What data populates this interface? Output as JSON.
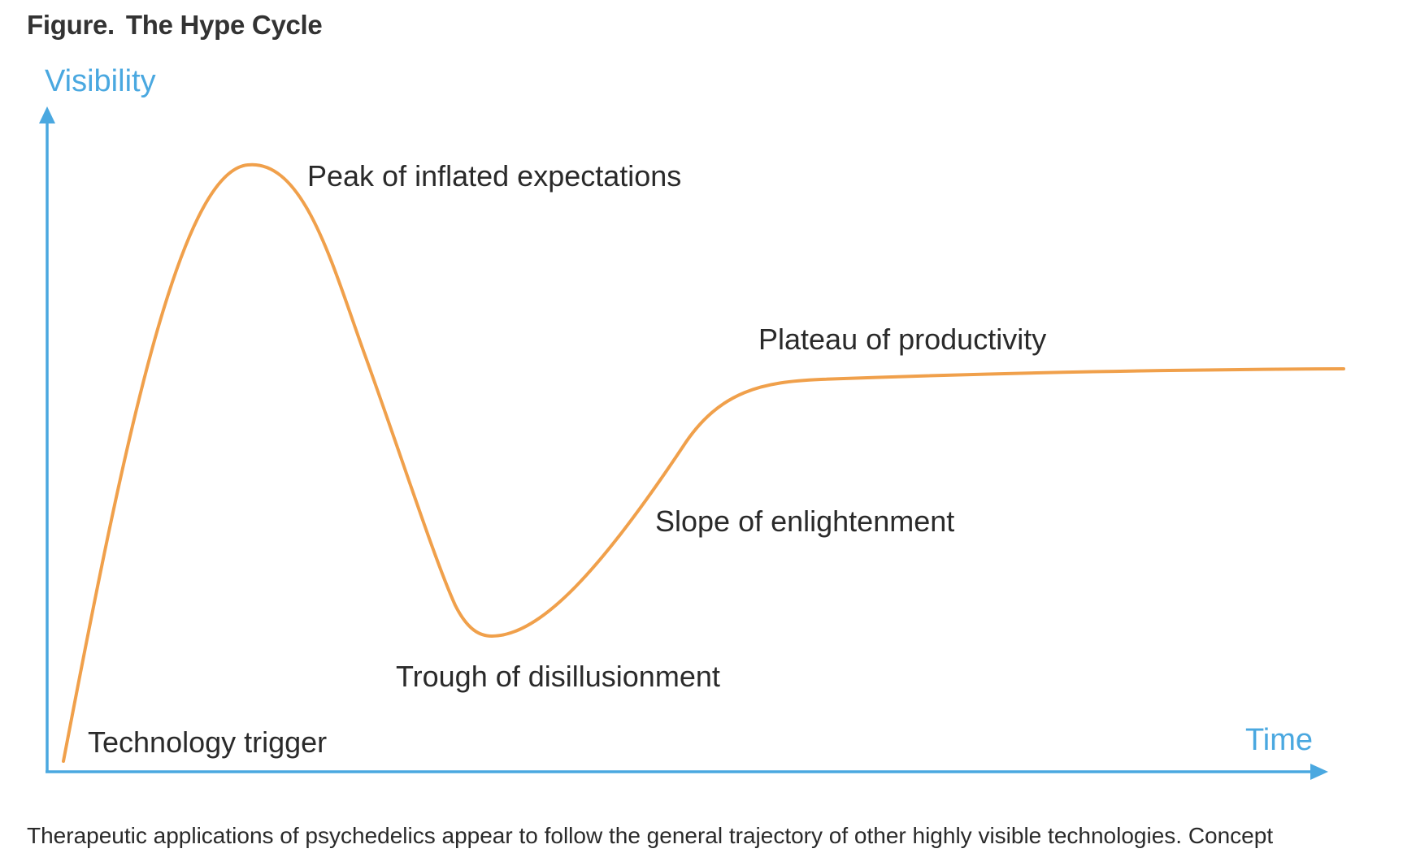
{
  "figure": {
    "label": "Figure.",
    "title": "The Hype Cycle"
  },
  "diagram": {
    "y_axis_label": "Visibility",
    "x_axis_label": "Time",
    "stages": {
      "technology_trigger": "Technology trigger",
      "peak": "Peak of inflated expectations",
      "trough": "Trough of disillusionment",
      "slope": "Slope of enlightenment",
      "plateau": "Plateau of productivity"
    },
    "colors": {
      "axis": "#4aa8e0",
      "curve": "#f0a04b",
      "label": "#2a2a2a"
    }
  },
  "caption": "Therapeutic applications of psychedelics appear to follow the general trajectory of other highly visible technologies. Concept"
}
